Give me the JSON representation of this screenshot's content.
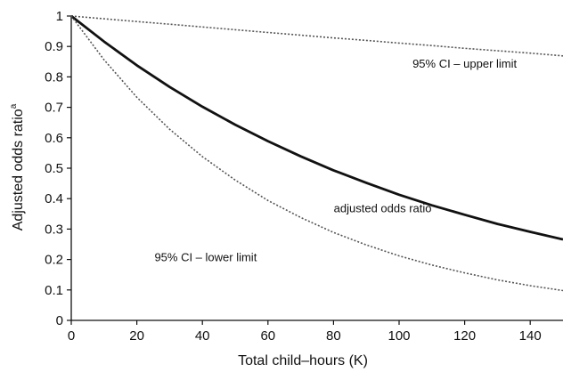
{
  "chart_data": {
    "type": "line",
    "title": "",
    "xlabel": "Total child–hours (K)",
    "ylabel": "Adjusted odds ratio",
    "ylabel_superscript": "a",
    "xlim": [
      0,
      150
    ],
    "ylim": [
      0,
      1
    ],
    "xticks": [
      "0",
      "20",
      "40",
      "60",
      "80",
      "100",
      "120",
      "140"
    ],
    "yticks": [
      "0",
      "0.1",
      "0.2",
      "0.3",
      "0.4",
      "0.5",
      "0.6",
      "0.7",
      "0.8",
      "0.9",
      "1"
    ],
    "grid": false,
    "x": [
      0,
      10,
      20,
      30,
      40,
      50,
      60,
      70,
      80,
      90,
      100,
      110,
      120,
      130,
      140,
      150
    ],
    "series": [
      {
        "name": "95% CI – upper limit",
        "style": "dotted",
        "color": "#555555",
        "values": [
          1.0,
          0.991,
          0.982,
          0.973,
          0.964,
          0.955,
          0.946,
          0.937,
          0.928,
          0.92,
          0.911,
          0.903,
          0.894,
          0.886,
          0.878,
          0.869
        ]
      },
      {
        "name": "adjusted odds ratio",
        "style": "solid",
        "color": "#111111",
        "values": [
          1.0,
          0.916,
          0.838,
          0.767,
          0.702,
          0.643,
          0.589,
          0.539,
          0.493,
          0.452,
          0.413,
          0.378,
          0.347,
          0.317,
          0.291,
          0.266
        ]
      },
      {
        "name": "95% CI – lower limit",
        "style": "dotted",
        "color": "#555555",
        "values": [
          1.0,
          0.856,
          0.733,
          0.628,
          0.538,
          0.461,
          0.394,
          0.338,
          0.289,
          0.248,
          0.212,
          0.182,
          0.156,
          0.133,
          0.114,
          0.098
        ]
      }
    ],
    "annotations": [
      {
        "text": "95% CI – upper limit",
        "x": 120,
        "y": 0.83
      },
      {
        "text": "adjusted odds ratio",
        "x": 95,
        "y": 0.355
      },
      {
        "text": "95% CI – lower limit",
        "x": 41,
        "y": 0.195
      }
    ]
  }
}
